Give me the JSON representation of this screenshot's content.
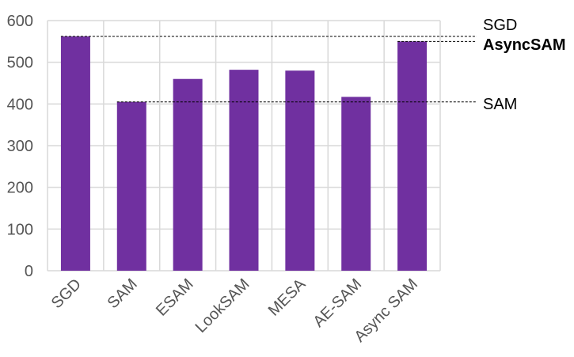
{
  "chart_data": {
    "type": "bar",
    "categories": [
      "SGD",
      "SAM",
      "ESAM",
      "LookSAM",
      "MESA",
      "AE-SAM",
      "Async SAM"
    ],
    "values": [
      562,
      405,
      460,
      482,
      480,
      417,
      550
    ],
    "title": "",
    "xlabel": "",
    "ylabel": "",
    "ylim": [
      0,
      600
    ],
    "yticks": [
      "0",
      "100",
      "200",
      "300",
      "400",
      "500",
      "600"
    ],
    "grid": true,
    "bar_color": "#7030a0",
    "reference_lines": [
      {
        "label": "SGD",
        "value": 562,
        "bold": false
      },
      {
        "label": "AsyncSAM",
        "value": 550,
        "bold": true
      },
      {
        "label": "SAM",
        "value": 405,
        "bold": false
      }
    ]
  }
}
